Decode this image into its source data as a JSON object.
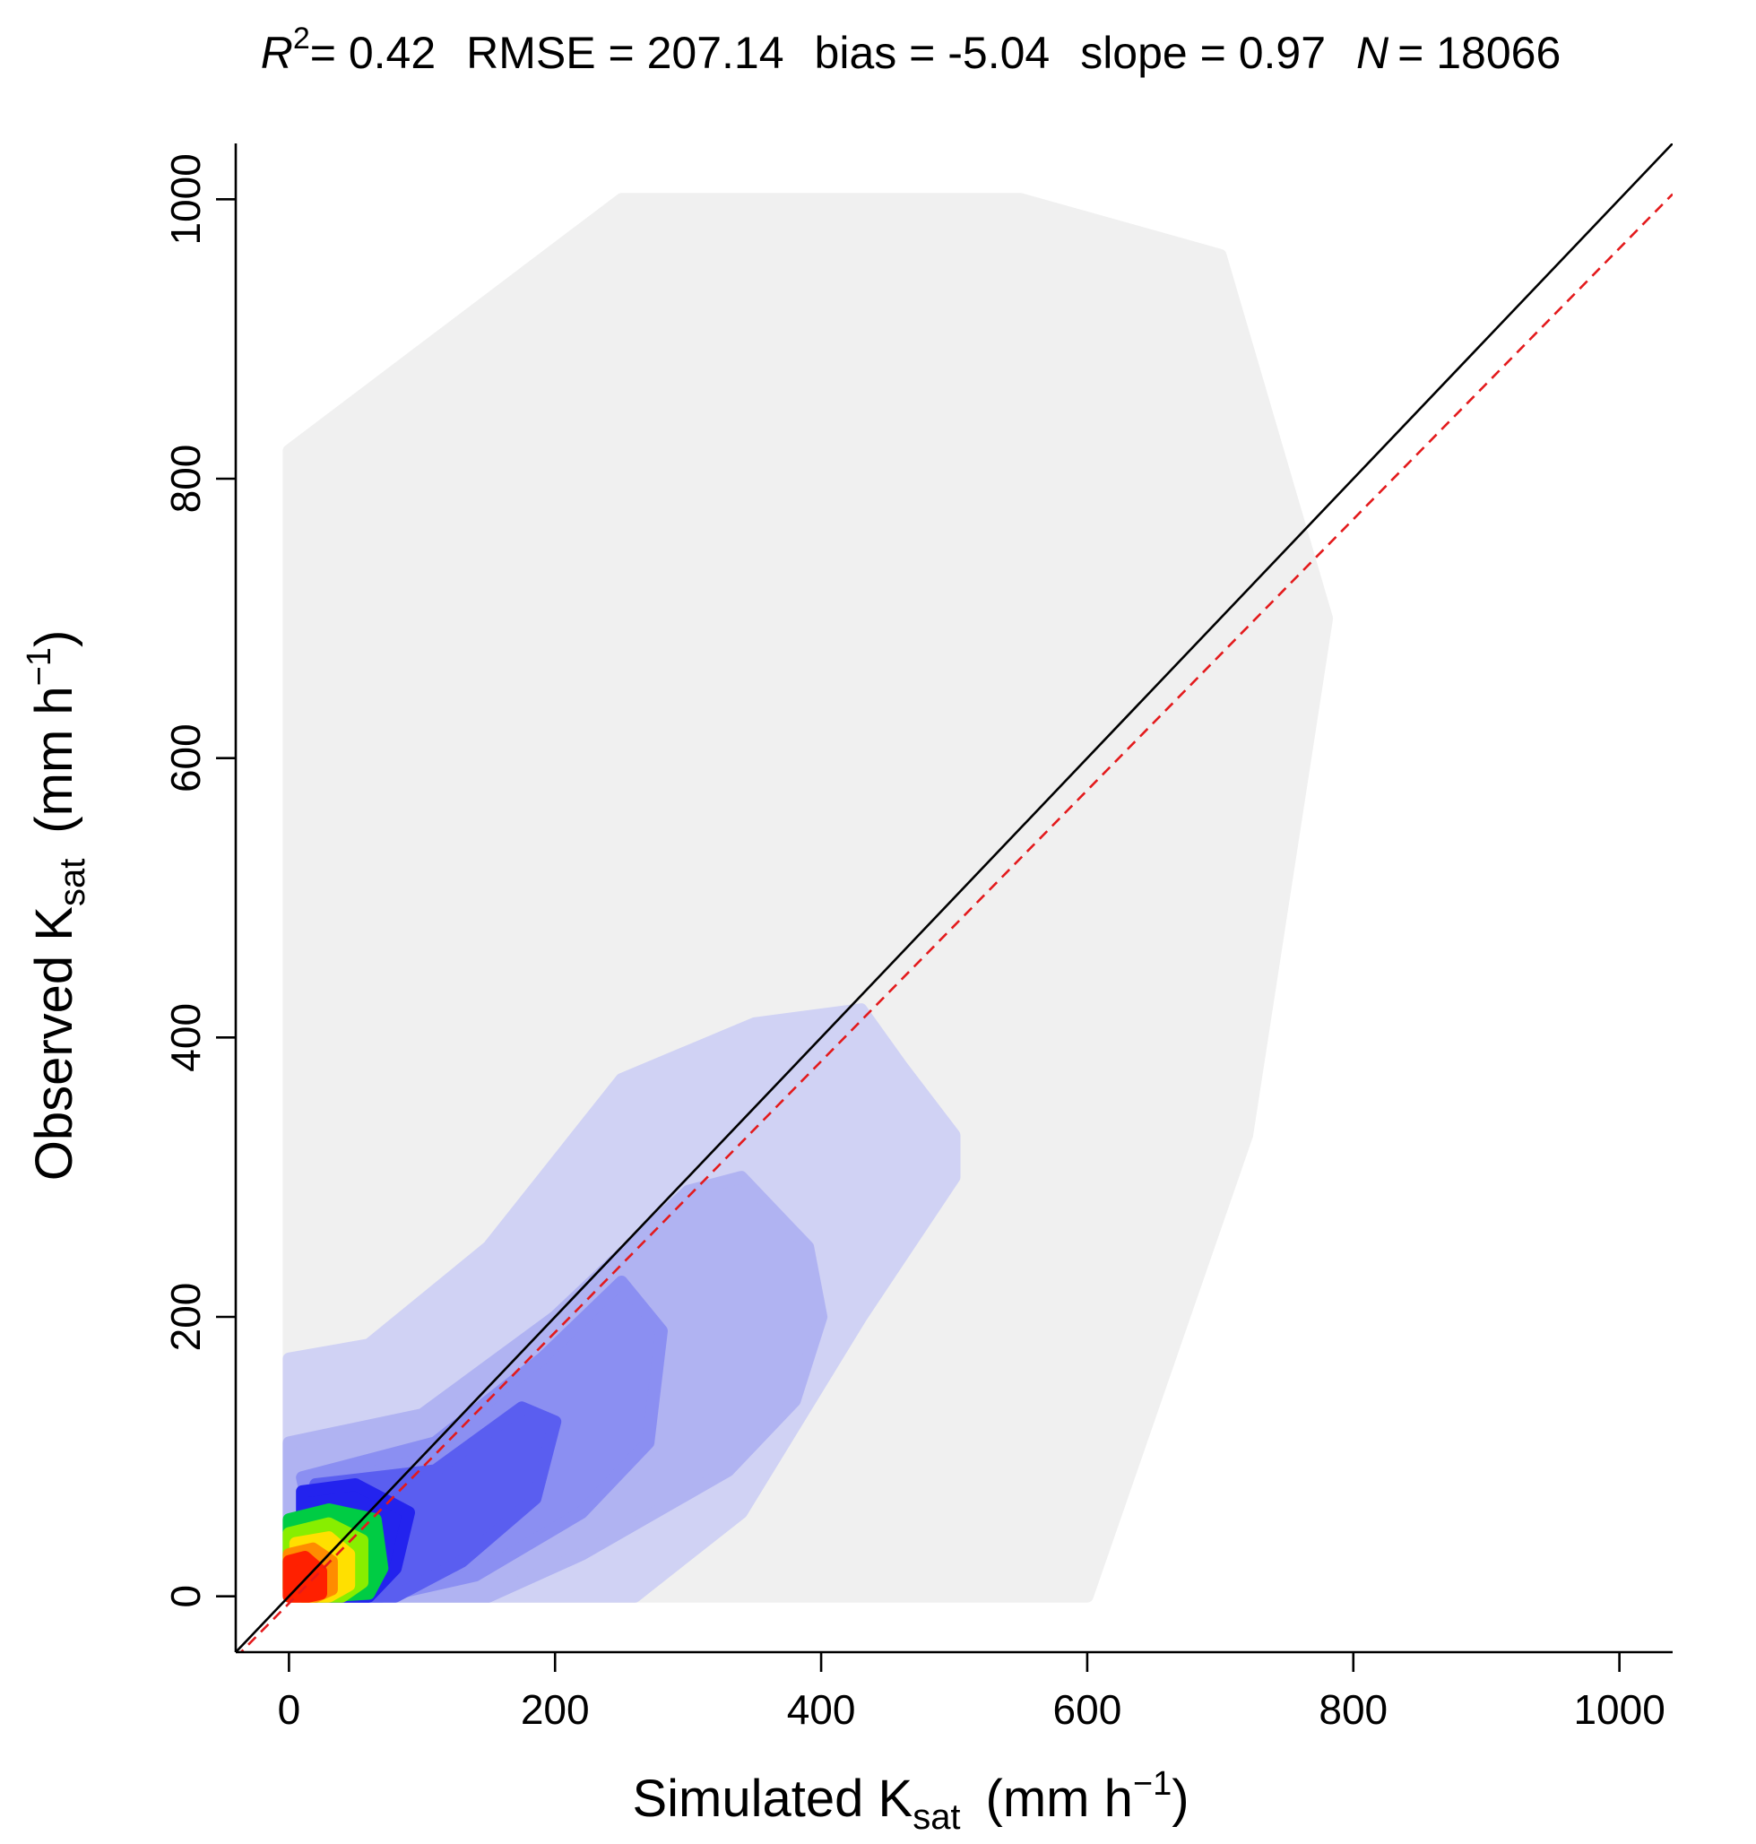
{
  "chart_data": {
    "type": "scatter",
    "title": {
      "r2_symbol": "R",
      "r2_exponent": "2",
      "r2_value": "= 0.42",
      "rmse": "RMSE = 207.14",
      "bias": "bias = -5.04",
      "slope": "slope = 0.97",
      "n_symbol": "N",
      "n_value": "= 18066"
    },
    "xlabel": {
      "main": "Simulated K",
      "sub": "sat",
      "unit_open": "(mm h",
      "unit_exp": "−1",
      "unit_close": ")"
    },
    "ylabel": {
      "main": "Observed K",
      "sub": "sat",
      "unit_open": "(mm h",
      "unit_exp": "−1",
      "unit_close": ")"
    },
    "xlim": [
      -40,
      1040
    ],
    "ylim": [
      -40,
      1040
    ],
    "xticks": [
      0,
      200,
      400,
      600,
      800,
      1000
    ],
    "yticks": [
      0,
      200,
      400,
      600,
      800,
      1000
    ],
    "xtick_labels": [
      "0",
      "200",
      "400",
      "600",
      "800",
      "1000"
    ],
    "ytick_labels": [
      "0",
      "200",
      "400",
      "600",
      "800",
      "1000"
    ],
    "grid": false,
    "one_to_one_line": {
      "intercept": 0,
      "slope": 1,
      "color": "#000000",
      "style": "solid"
    },
    "regression_line": {
      "intercept": -5.04,
      "slope": 0.97,
      "color": "#e31a1c",
      "style": "dashed"
    },
    "density_colors": {
      "sparse": "#f0f0f0",
      "level1": "#d0d2f4",
      "level2": "#b0b3f2",
      "level3": "#8b8ff2",
      "level4": "#5a5ef0",
      "level5": "#2323ee",
      "level6": "#00cc44",
      "level7": "#88ee00",
      "level8": "#ffe000",
      "level9": "#ff8c00",
      "level10": "#ff2000"
    },
    "density_regions": [
      {
        "level": "sparse",
        "points": [
          [
            0,
            0
          ],
          [
            0,
            820
          ],
          [
            250,
            1000
          ],
          [
            550,
            1000
          ],
          [
            700,
            960
          ],
          [
            780,
            700
          ],
          [
            720,
            330
          ],
          [
            600,
            0
          ]
        ]
      },
      {
        "level": "level1",
        "points": [
          [
            0,
            0
          ],
          [
            0,
            170
          ],
          [
            60,
            180
          ],
          [
            150,
            250
          ],
          [
            250,
            370
          ],
          [
            350,
            410
          ],
          [
            430,
            420
          ],
          [
            460,
            380
          ],
          [
            500,
            330
          ],
          [
            500,
            300
          ],
          [
            430,
            200
          ],
          [
            340,
            60
          ],
          [
            260,
            0
          ]
        ]
      },
      {
        "level": "level2",
        "points": [
          [
            0,
            40
          ],
          [
            0,
            110
          ],
          [
            100,
            130
          ],
          [
            200,
            200
          ],
          [
            300,
            290
          ],
          [
            340,
            300
          ],
          [
            390,
            250
          ],
          [
            400,
            200
          ],
          [
            380,
            140
          ],
          [
            330,
            90
          ],
          [
            220,
            30
          ],
          [
            150,
            0
          ],
          [
            30,
            0
          ]
        ]
      },
      {
        "level": "level3",
        "points": [
          [
            20,
            40
          ],
          [
            10,
            85
          ],
          [
            110,
            110
          ],
          [
            190,
            170
          ],
          [
            250,
            225
          ],
          [
            280,
            190
          ],
          [
            270,
            110
          ],
          [
            220,
            60
          ],
          [
            140,
            15
          ],
          [
            70,
            0
          ],
          [
            30,
            0
          ]
        ]
      },
      {
        "level": "level4",
        "points": [
          [
            20,
            30
          ],
          [
            20,
            80
          ],
          [
            110,
            90
          ],
          [
            175,
            135
          ],
          [
            200,
            125
          ],
          [
            185,
            70
          ],
          [
            130,
            25
          ],
          [
            80,
            0
          ],
          [
            40,
            0
          ]
        ]
      },
      {
        "level": "level5",
        "points": [
          [
            10,
            10
          ],
          [
            10,
            75
          ],
          [
            50,
            80
          ],
          [
            90,
            60
          ],
          [
            80,
            20
          ],
          [
            60,
            0
          ],
          [
            20,
            0
          ]
        ]
      },
      {
        "level": "level6",
        "points": [
          [
            0,
            5
          ],
          [
            0,
            55
          ],
          [
            30,
            62
          ],
          [
            65,
            55
          ],
          [
            70,
            20
          ],
          [
            60,
            2
          ],
          [
            25,
            0
          ]
        ]
      },
      {
        "level": "level7",
        "points": [
          [
            0,
            5
          ],
          [
            0,
            45
          ],
          [
            30,
            52
          ],
          [
            55,
            40
          ],
          [
            55,
            10
          ],
          [
            40,
            0
          ],
          [
            10,
            0
          ]
        ]
      },
      {
        "level": "level8",
        "points": [
          [
            5,
            5
          ],
          [
            5,
            38
          ],
          [
            30,
            42
          ],
          [
            45,
            30
          ],
          [
            45,
            8
          ],
          [
            30,
            0
          ],
          [
            10,
            0
          ]
        ]
      },
      {
        "level": "level9",
        "points": [
          [
            0,
            0
          ],
          [
            0,
            30
          ],
          [
            18,
            34
          ],
          [
            32,
            25
          ],
          [
            32,
            5
          ],
          [
            20,
            0
          ]
        ]
      },
      {
        "level": "level10",
        "points": [
          [
            0,
            0
          ],
          [
            0,
            25
          ],
          [
            12,
            28
          ],
          [
            24,
            18
          ],
          [
            24,
            2
          ],
          [
            15,
            0
          ]
        ]
      }
    ]
  }
}
